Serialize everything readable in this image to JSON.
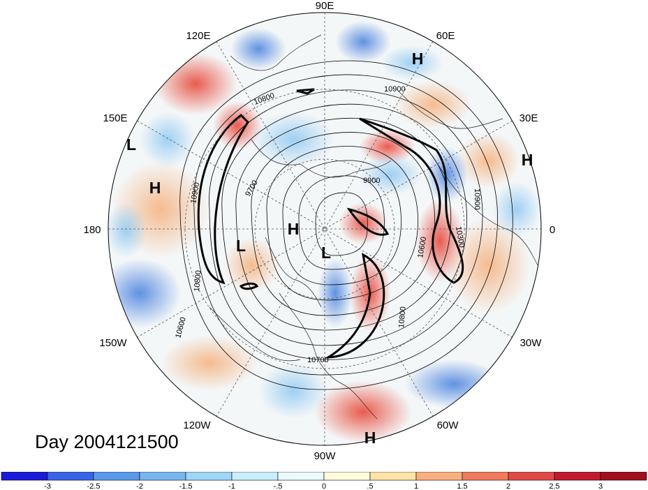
{
  "title": "Day 2004121500",
  "longitude_labels": [
    "90E",
    "60E",
    "30E",
    "0",
    "30W",
    "60W",
    "90W",
    "120W",
    "150W",
    "180",
    "150E",
    "120E"
  ],
  "pressure_centers": [
    {
      "label": "H"
    },
    {
      "label": "H"
    },
    {
      "label": "L"
    },
    {
      "label": "H"
    },
    {
      "label": "H"
    },
    {
      "label": "L"
    },
    {
      "label": "L"
    },
    {
      "label": "H"
    }
  ],
  "contour_labels": [
    "10900",
    "10800",
    "9900",
    "10900",
    "10900",
    "9700",
    "10800",
    "10600",
    "10700",
    "10800",
    "10600",
    "10300"
  ],
  "colorbar": {
    "ticks": [
      "-3",
      "-2.5",
      "-2",
      "-1.5",
      "-1",
      "-.5",
      "0",
      ".5",
      "1",
      "1.5",
      "2",
      "2.5",
      "3"
    ],
    "colors": [
      "#1a1ad8",
      "#3a64e8",
      "#5b9ae8",
      "#78b6f0",
      "#9ed6f5",
      "#c8eefb",
      "#eafaff",
      "#fffadc",
      "#fde3a6",
      "#f9b07e",
      "#f07b5c",
      "#e04a46",
      "#c01b2c",
      "#a0101e"
    ]
  }
}
